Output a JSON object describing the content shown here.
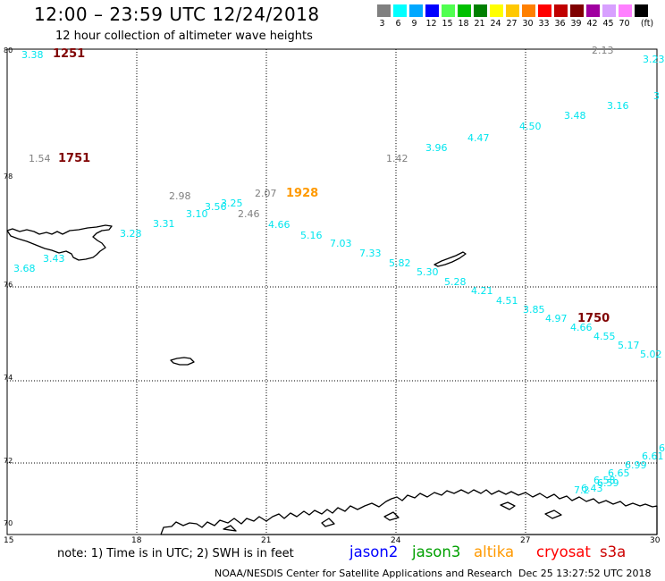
{
  "header": {
    "title": "12:00 – 23:59 UTC 12/24/2018",
    "subtitle": "12 hour collection of altimeter wave heights"
  },
  "color_scale": {
    "unit": "(ft)",
    "labels": [
      "3",
      "6",
      "9",
      "12",
      "15",
      "18",
      "21",
      "24",
      "27",
      "30",
      "33",
      "36",
      "39",
      "42",
      "45",
      "70"
    ],
    "colors": [
      "#808080",
      "#00ffff",
      "#00a8ff",
      "#0000ff",
      "#50ff50",
      "#00c000",
      "#008000",
      "#ffff00",
      "#ffc800",
      "#ff8000",
      "#ff0000",
      "#c00000",
      "#800000",
      "#a000a0",
      "#d8a0ff",
      "#ff80ff",
      "#000000"
    ]
  },
  "axes": {
    "lat_labels": [
      "80",
      "78",
      "76",
      "74",
      "72",
      "70"
    ],
    "lon_labels": [
      "15",
      "18",
      "21",
      "24",
      "27",
      "30"
    ]
  },
  "time_labels": [
    {
      "text": "1251",
      "color": "#800000"
    },
    {
      "text": "1751",
      "color": "#800000"
    },
    {
      "text": "1928",
      "color": "#ff9900"
    },
    {
      "text": "1750",
      "color": "#800000"
    }
  ],
  "wave_heights": [
    {
      "v": "3.38",
      "c": "#00e5ee"
    },
    {
      "v": "2.13",
      "c": "#808080"
    },
    {
      "v": "3.23",
      "c": "#00e5ee"
    },
    {
      "v": "3",
      "c": "#00e5ee"
    },
    {
      "v": "3.16",
      "c": "#00e5ee"
    },
    {
      "v": "3.48",
      "c": "#00e5ee"
    },
    {
      "v": "4.50",
      "c": "#00e5ee"
    },
    {
      "v": "4.47",
      "c": "#00e5ee"
    },
    {
      "v": "3.96",
      "c": "#00e5ee"
    },
    {
      "v": "1.42",
      "c": "#808080"
    },
    {
      "v": "1.54",
      "c": "#808080"
    },
    {
      "v": "2.98",
      "c": "#808080"
    },
    {
      "v": "2.07",
      "c": "#808080"
    },
    {
      "v": "3.56",
      "c": "#00e5ee"
    },
    {
      "v": "3.25",
      "c": "#00e5ee"
    },
    {
      "v": "3.10",
      "c": "#00e5ee"
    },
    {
      "v": "2.46",
      "c": "#808080"
    },
    {
      "v": "3.31",
      "c": "#00e5ee"
    },
    {
      "v": "4.66",
      "c": "#00e5ee"
    },
    {
      "v": "3.28",
      "c": "#00e5ee"
    },
    {
      "v": "5.16",
      "c": "#00e5ee"
    },
    {
      "v": "7.03",
      "c": "#00e5ee"
    },
    {
      "v": "7.33",
      "c": "#00e5ee"
    },
    {
      "v": "3.43",
      "c": "#00e5ee"
    },
    {
      "v": "5.82",
      "c": "#00e5ee"
    },
    {
      "v": "3.68",
      "c": "#00e5ee"
    },
    {
      "v": "5.30",
      "c": "#00e5ee"
    },
    {
      "v": "5.28",
      "c": "#00e5ee"
    },
    {
      "v": "4.21",
      "c": "#00e5ee"
    },
    {
      "v": "4.51",
      "c": "#00e5ee"
    },
    {
      "v": "3.85",
      "c": "#00e5ee"
    },
    {
      "v": "4.97",
      "c": "#00e5ee"
    },
    {
      "v": "4.66",
      "c": "#00e5ee"
    },
    {
      "v": "4.55",
      "c": "#00e5ee"
    },
    {
      "v": "5.17",
      "c": "#00e5ee"
    },
    {
      "v": "5.02",
      "c": "#00e5ee"
    },
    {
      "v": "6",
      "c": "#00e5ee"
    },
    {
      "v": "6.61",
      "c": "#00e5ee"
    },
    {
      "v": "6.99",
      "c": "#00e5ee"
    },
    {
      "v": "6.65",
      "c": "#00e5ee"
    },
    {
      "v": "6.58",
      "c": "#00e5ee"
    },
    {
      "v": "6.59",
      "c": "#00e5ee"
    },
    {
      "v": "6.43",
      "c": "#00e5ee"
    },
    {
      "v": "7.2",
      "c": "#00e5ee"
    }
  ],
  "footer": {
    "note": "note: 1) Time is in UTC; 2) SWH is in feet",
    "satellites": [
      {
        "name": "jason2",
        "color": "#0000ff"
      },
      {
        "name": "jason3",
        "color": "#00a000"
      },
      {
        "name": "altika",
        "color": "#ff9900"
      },
      {
        "name": "cryosat",
        "color": "#ff0000"
      },
      {
        "name": "s3a",
        "color": "#cc0000"
      }
    ],
    "credit": "NOAA/NESDIS Center for Satellite Applications and Research",
    "timestamp": "Dec 25 13:27:52 UTC 2018"
  }
}
